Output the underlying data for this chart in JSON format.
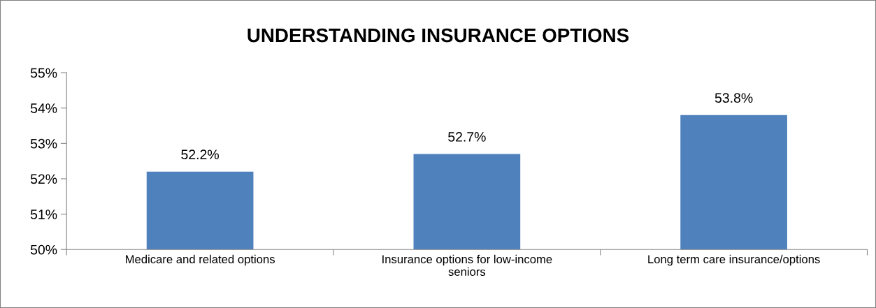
{
  "chart_data": {
    "type": "bar",
    "title": "UNDERSTANDING INSURANCE OPTIONS",
    "categories": [
      "Medicare and related options",
      "Insurance options for low-income seniors",
      "Long term care insurance/options"
    ],
    "values": [
      52.2,
      52.7,
      53.8
    ],
    "value_labels": [
      "52.2%",
      "52.7%",
      "53.8%"
    ],
    "color": "#4f81bd",
    "ylim": [
      50,
      55
    ],
    "yticks": [
      {
        "value": 50,
        "label": "50%"
      },
      {
        "value": 51,
        "label": "51%"
      },
      {
        "value": 52,
        "label": "52%"
      },
      {
        "value": 53,
        "label": "53%"
      },
      {
        "value": 54,
        "label": "54%"
      },
      {
        "value": 55,
        "label": "55%"
      }
    ],
    "grid": false,
    "legend": false
  }
}
